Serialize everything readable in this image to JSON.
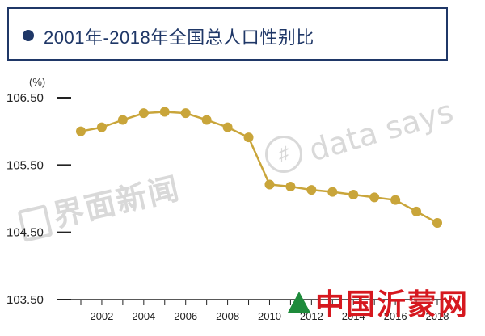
{
  "header": {
    "title": "2001年-2018年全国总人口性别比"
  },
  "watermarks": {
    "left": "界面新闻",
    "right": "data says",
    "site": "中国沂蒙网"
  },
  "colors": {
    "accent": "#1f3767",
    "line": "#c9a53a"
  },
  "chart_data": {
    "type": "line",
    "ylabel": "(%)",
    "ylim": [
      103.5,
      106.5
    ],
    "yticks": [
      "106.50",
      "105.50",
      "104.50",
      "103.50"
    ],
    "xticks": [
      "2002",
      "2004",
      "2006",
      "2008",
      "2010",
      "2012",
      "2014",
      "2016",
      "2018"
    ],
    "x": [
      2001,
      2002,
      2003,
      2004,
      2005,
      2006,
      2007,
      2008,
      2009,
      2010,
      2011,
      2012,
      2013,
      2014,
      2015,
      2016,
      2017,
      2018
    ],
    "series": [
      {
        "values": [
          106.0,
          106.06,
          106.17,
          106.27,
          106.29,
          106.27,
          106.17,
          106.06,
          105.91,
          105.21,
          105.18,
          105.13,
          105.1,
          105.06,
          105.02,
          104.98,
          104.81,
          104.64
        ]
      }
    ]
  }
}
